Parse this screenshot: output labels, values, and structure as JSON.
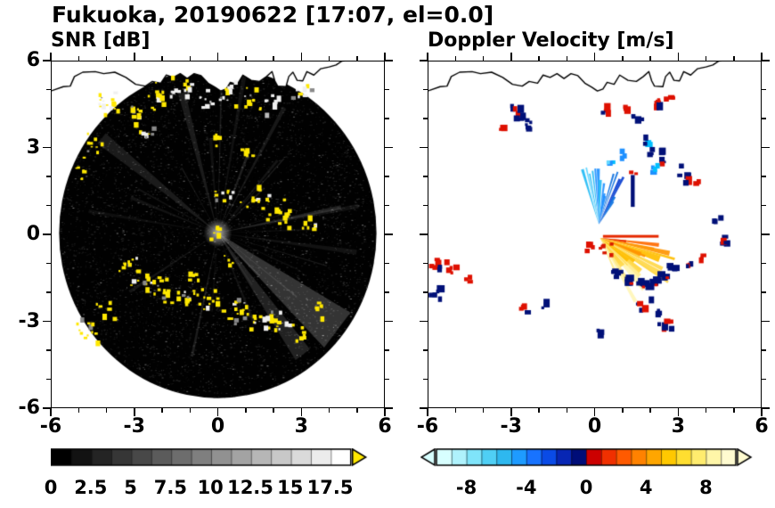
{
  "header": {
    "title": "Fukuoka, 20190622 [17:07, el=0.0]"
  },
  "panels": {
    "snr": {
      "subtitle": "SNR [dB]"
    },
    "doppler": {
      "subtitle": "Doppler Velocity [m/s]"
    }
  },
  "axes": {
    "range": [
      -6,
      6
    ],
    "tick_values": [
      -6,
      -3,
      0,
      3,
      6
    ],
    "tick_labels": [
      "-6",
      "-3",
      "0",
      "3",
      "6"
    ],
    "minor_step": 1
  },
  "colorbars": {
    "snr": {
      "min": 0,
      "max": 18.75,
      "step": 1.25,
      "label_values": [
        0,
        2.5,
        5,
        7.5,
        10,
        12.5,
        15,
        17.5
      ],
      "labels": [
        "0",
        "2.5",
        "5",
        "7.5",
        "10",
        "12.5",
        "15",
        "17.5"
      ],
      "colors": [
        "#000000",
        "#121212",
        "#242424",
        "#363636",
        "#484848",
        "#5B5B5B",
        "#6D6D6D",
        "#7F7F7F",
        "#919191",
        "#A3A3A3",
        "#B6B6B6",
        "#C8C8C8",
        "#DADADA",
        "#ECECEC",
        "#FFFFFF"
      ],
      "over_color": "#FFE800"
    },
    "doppler": {
      "min": -10,
      "max": 10,
      "step": 1,
      "label_values": [
        -8,
        -4,
        0,
        4,
        8
      ],
      "labels": [
        "-8",
        "-4",
        "0",
        "4",
        "8"
      ],
      "colors": [
        "#D8FFFF",
        "#AFF2FC",
        "#7FE4FA",
        "#4FCFF5",
        "#2EB8EF",
        "#1E9BFF",
        "#1873FF",
        "#0A4BE6",
        "#0726B4",
        "#000D78",
        "#CC0000",
        "#F03000",
        "#FF5A00",
        "#FF8200",
        "#FFA600",
        "#FFC800",
        "#FFDE30",
        "#FFEC6E",
        "#FFF6A8",
        "#FFFBD0"
      ],
      "under_color": "#D8FFFF",
      "over_color": "#FFFBD0"
    }
  },
  "chart_data": {
    "type": "heatmap",
    "description": "Dual-panel radar PPI display, Fukuoka, 2019-06-22 17:07, elevation 0.0 deg. Left panel: SNR [dB], grayscale 0-18.75 dB with yellow for values above scale, black circular scan disk of radius ~5.7 km with yellow echo clusters and gray beam streaks. Right panel: Doppler velocity [m/s], -10..10, cyan/blue (toward, upper fan) and red/orange/yellow (away, lower-right fan) echoes on white, with navy/red speckles. Coastline of Hakata Bay drawn across the top of both panels.",
    "x_range": [
      -6,
      6
    ],
    "y_range": [
      -6,
      6
    ],
    "coastline": [
      [
        -6.0,
        4.95
      ],
      [
        -5.55,
        5.1
      ],
      [
        -5.3,
        5.12
      ],
      [
        -5.15,
        5.45
      ],
      [
        -4.85,
        5.6
      ],
      [
        -4.4,
        5.62
      ],
      [
        -4.1,
        5.55
      ],
      [
        -3.7,
        5.6
      ],
      [
        -3.3,
        5.42
      ],
      [
        -2.95,
        5.18
      ],
      [
        -2.6,
        5.12
      ],
      [
        -2.35,
        5.28
      ],
      [
        -2.05,
        5.22
      ],
      [
        -1.85,
        5.5
      ],
      [
        -1.6,
        5.42
      ],
      [
        -1.35,
        5.55
      ],
      [
        -1.1,
        5.38
      ],
      [
        -0.85,
        5.55
      ],
      [
        -0.6,
        5.48
      ],
      [
        -0.35,
        5.22
      ],
      [
        -0.1,
        5.08
      ],
      [
        0.1,
        4.95
      ],
      [
        0.3,
        5.02
      ],
      [
        0.45,
        5.25
      ],
      [
        0.7,
        5.18
      ],
      [
        0.9,
        5.5
      ],
      [
        1.2,
        5.32
      ],
      [
        1.5,
        5.28
      ],
      [
        1.75,
        5.45
      ],
      [
        1.95,
        5.62
      ],
      [
        2.05,
        5.3
      ],
      [
        2.15,
        5.12
      ],
      [
        2.45,
        5.1
      ],
      [
        2.55,
        5.45
      ],
      [
        2.7,
        5.6
      ],
      [
        2.85,
        5.32
      ],
      [
        3.05,
        5.3
      ],
      [
        3.2,
        5.62
      ],
      [
        3.45,
        5.5
      ],
      [
        3.7,
        5.72
      ],
      [
        4.0,
        5.78
      ],
      [
        4.25,
        5.85
      ],
      [
        4.45,
        5.98
      ],
      [
        4.55,
        6.0
      ]
    ],
    "snr": {
      "disk_center": [
        0,
        0.05
      ],
      "disk_radius": 5.7,
      "noise_count": 5200,
      "ray_count": 26,
      "bright_wedges": [
        {
          "a": -38,
          "w": 16,
          "len": 5.5,
          "alpha": 0.2
        },
        {
          "a": -54,
          "w": 7,
          "len": 5.2,
          "alpha": 0.13
        },
        {
          "a": 142,
          "w": 5,
          "len": 5.3,
          "alpha": 0.1
        },
        {
          "a": 105,
          "w": 3,
          "len": 5.0,
          "alpha": 0.1
        }
      ],
      "clusters": [
        [
          -3.9,
          4.5,
          16,
          0.35,
          "yw"
        ],
        [
          -3.1,
          4.15,
          10,
          0.3,
          "yw"
        ],
        [
          -2.2,
          4.75,
          14,
          0.35,
          "yw"
        ],
        [
          -1.3,
          5.05,
          12,
          0.3,
          "wy"
        ],
        [
          -0.45,
          4.65,
          8,
          0.25,
          "w"
        ],
        [
          0.4,
          4.95,
          12,
          0.3,
          "wy"
        ],
        [
          1.2,
          4.75,
          10,
          0.3,
          "yw"
        ],
        [
          2.0,
          4.45,
          8,
          0.3,
          "w"
        ],
        [
          2.9,
          4.95,
          9,
          0.3,
          "wy"
        ],
        [
          -2.6,
          3.5,
          8,
          0.25,
          "yw"
        ],
        [
          -4.6,
          3.1,
          10,
          0.3,
          "yw"
        ],
        [
          -5.0,
          2.2,
          6,
          0.2,
          "y"
        ],
        [
          -0.05,
          3.35,
          5,
          0.2,
          "y"
        ],
        [
          1.0,
          2.9,
          5,
          0.2,
          "y"
        ],
        [
          0.3,
          1.45,
          10,
          0.3,
          "yw"
        ],
        [
          1.5,
          1.15,
          12,
          0.35,
          "yw"
        ],
        [
          2.3,
          0.75,
          14,
          0.4,
          "yw"
        ],
        [
          3.3,
          0.35,
          8,
          0.3,
          "yw"
        ],
        [
          -0.1,
          0.1,
          6,
          0.15,
          "y"
        ],
        [
          0.3,
          -0.9,
          5,
          0.2,
          "y"
        ],
        [
          -0.9,
          -1.3,
          5,
          0.2,
          "y"
        ],
        [
          -3.3,
          -1.15,
          10,
          0.3,
          "yw"
        ],
        [
          -2.7,
          -1.5,
          12,
          0.3,
          "yw"
        ],
        [
          -2.0,
          -1.85,
          14,
          0.35,
          "yw"
        ],
        [
          -1.2,
          -2.1,
          12,
          0.3,
          "yw"
        ],
        [
          -0.4,
          -2.3,
          12,
          0.3,
          "yw"
        ],
        [
          0.5,
          -2.5,
          14,
          0.35,
          "yw"
        ],
        [
          1.3,
          -2.75,
          12,
          0.35,
          "yw"
        ],
        [
          2.1,
          -3.05,
          14,
          0.4,
          "yw"
        ],
        [
          2.9,
          -3.35,
          8,
          0.3,
          "y"
        ],
        [
          3.7,
          -2.5,
          6,
          0.25,
          "y"
        ],
        [
          -4.7,
          -3.25,
          12,
          0.35,
          "yw"
        ],
        [
          -4.1,
          -2.6,
          6,
          0.25,
          "y"
        ]
      ]
    },
    "doppler": {
      "fans": [
        {
          "x": 0.15,
          "y": 0.35,
          "a0": 108,
          "a1": 55,
          "n": 16,
          "lmin": 0.7,
          "lmax": 2.3,
          "wmin": 1.5,
          "wmax": 4,
          "palette": [
            "#9FE8FF",
            "#5BD4FF",
            "#22BBF5",
            "#1E90FF",
            "#0A6FE0",
            "#0A3FD0"
          ]
        },
        {
          "x": 0.2,
          "y": -0.12,
          "a0": -6,
          "a1": -64,
          "n": 24,
          "lmin": 0.8,
          "lmax": 2.9,
          "wmin": 2.5,
          "wmax": 8,
          "palette": [
            "#E83000",
            "#FF6A00",
            "#FF9500",
            "#FFBE00",
            "#FFD84A",
            "#FFEB8C",
            "#FFF6B8"
          ]
        }
      ],
      "navy_bar": {
        "x": 1.3,
        "y": 0.95,
        "w": 0.14,
        "h": 1.1
      },
      "edge_blobs": [
        [
          0.75,
          -1.25
        ],
        [
          1.1,
          -1.5
        ],
        [
          1.55,
          -1.62
        ],
        [
          2.0,
          -1.55
        ],
        [
          2.4,
          -1.3
        ],
        [
          2.75,
          -1.0
        ]
      ],
      "clusters": [
        [
          -2.9,
          4.3,
          8,
          0.22,
          "nr"
        ],
        [
          -2.45,
          3.85,
          5,
          0.15,
          "n"
        ],
        [
          -3.4,
          3.75,
          3,
          0.1,
          "r"
        ],
        [
          0.35,
          4.4,
          4,
          0.12,
          "nr"
        ],
        [
          1.05,
          4.5,
          3,
          0.1,
          "r"
        ],
        [
          1.45,
          4.1,
          4,
          0.12,
          "n"
        ],
        [
          2.2,
          4.55,
          5,
          0.15,
          "nr"
        ],
        [
          2.65,
          4.85,
          3,
          0.1,
          "r"
        ],
        [
          1.85,
          3.35,
          5,
          0.15,
          "cbn"
        ],
        [
          2.15,
          2.95,
          5,
          0.18,
          "n"
        ],
        [
          2.5,
          2.55,
          4,
          0.15,
          "nr"
        ],
        [
          3.15,
          2.15,
          6,
          0.18,
          "nr"
        ],
        [
          2.05,
          2.25,
          4,
          0.15,
          "cb"
        ],
        [
          3.55,
          1.8,
          3,
          0.12,
          "r"
        ],
        [
          4.35,
          0.55,
          3,
          0.1,
          "n"
        ],
        [
          4.65,
          -0.2,
          6,
          0.18,
          "nr"
        ],
        [
          0.5,
          2.6,
          3,
          0.15,
          "cb"
        ],
        [
          0.95,
          2.85,
          3,
          0.12,
          "cb"
        ],
        [
          -5.65,
          -0.95,
          8,
          0.25,
          "rn"
        ],
        [
          -5.25,
          -1.2,
          4,
          0.15,
          "r"
        ],
        [
          -5.75,
          -1.95,
          6,
          0.2,
          "nr"
        ],
        [
          -4.55,
          -1.55,
          3,
          0.1,
          "r"
        ],
        [
          -2.55,
          -2.5,
          4,
          0.12,
          "rn"
        ],
        [
          -1.95,
          -2.35,
          3,
          0.1,
          "n"
        ],
        [
          1.65,
          -2.35,
          6,
          0.2,
          "nr"
        ],
        [
          2.15,
          -2.6,
          4,
          0.15,
          "n"
        ],
        [
          2.55,
          -3.05,
          6,
          0.18,
          "rn"
        ],
        [
          0.15,
          -3.2,
          3,
          0.1,
          "n"
        ],
        [
          3.35,
          -1.05,
          5,
          0.15,
          "rn"
        ],
        [
          3.85,
          -0.7,
          3,
          0.1,
          "r"
        ],
        [
          -0.25,
          -0.35,
          4,
          0.12,
          "r"
        ]
      ]
    }
  }
}
